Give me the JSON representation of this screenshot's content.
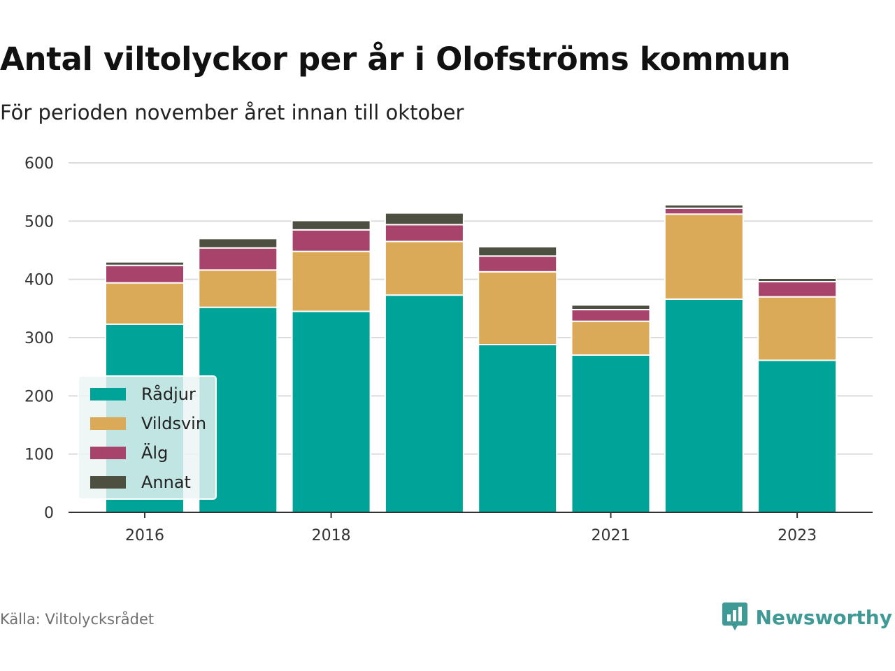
{
  "title": "Antal viltolyckor per år i Olofströms kommun",
  "subtitle": "För perioden november året innan till oktober",
  "source": "Källa: Viltolycksrådet",
  "brand": "Newsworthy",
  "chart_data": {
    "type": "bar",
    "stacked": true,
    "categories": [
      "2016",
      "2017",
      "2018",
      "2019",
      "2020",
      "2021",
      "2022",
      "2023"
    ],
    "x_tick_labels": [
      "2016",
      "2018",
      "2021",
      "2023"
    ],
    "ylim": [
      0,
      600
    ],
    "y_ticks": [
      0,
      100,
      200,
      300,
      400,
      500,
      600
    ],
    "grid": true,
    "legend_position": "bottom-left",
    "series": [
      {
        "name": "Rådjur",
        "color": "#00a398",
        "values": [
          323,
          352,
          345,
          373,
          288,
          270,
          366,
          261
        ]
      },
      {
        "name": "Vildsvin",
        "color": "#dbaa58",
        "values": [
          71,
          64,
          103,
          92,
          125,
          58,
          146,
          109
        ]
      },
      {
        "name": "Älg",
        "color": "#a8446b",
        "values": [
          30,
          38,
          37,
          29,
          27,
          20,
          10,
          26
        ]
      },
      {
        "name": "Annat",
        "color": "#4d5040",
        "values": [
          6,
          16,
          16,
          20,
          16,
          8,
          6,
          6
        ]
      }
    ]
  }
}
